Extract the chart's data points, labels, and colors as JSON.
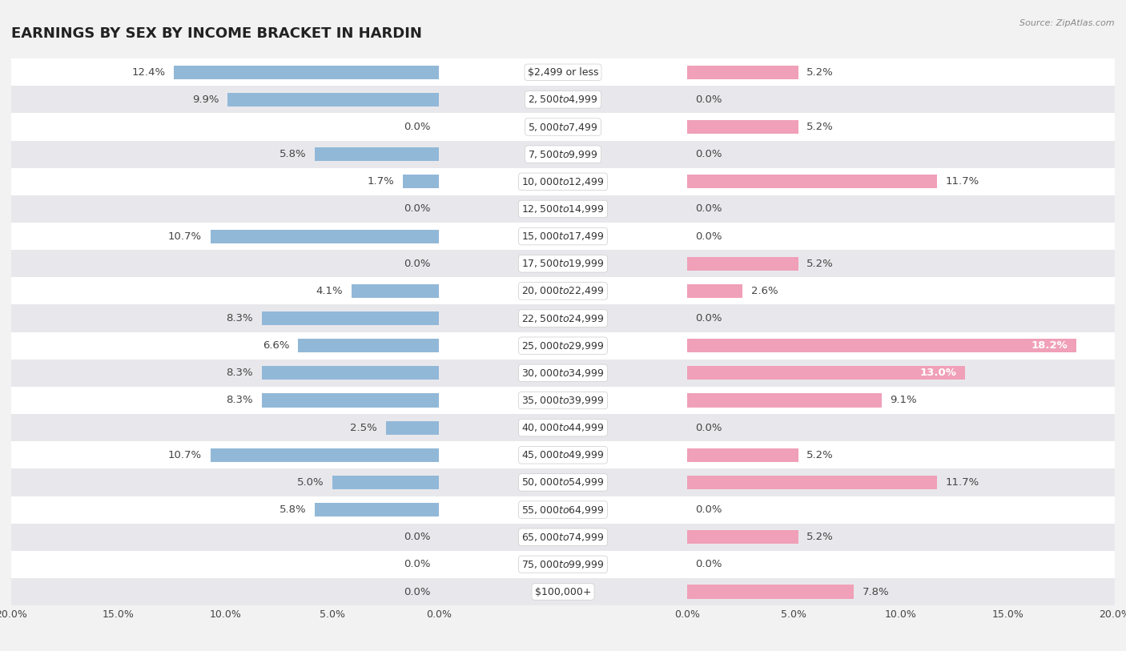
{
  "title": "EARNINGS BY SEX BY INCOME BRACKET IN HARDIN",
  "source": "Source: ZipAtlas.com",
  "categories": [
    "$2,499 or less",
    "$2,500 to $4,999",
    "$5,000 to $7,499",
    "$7,500 to $9,999",
    "$10,000 to $12,499",
    "$12,500 to $14,999",
    "$15,000 to $17,499",
    "$17,500 to $19,999",
    "$20,000 to $22,499",
    "$22,500 to $24,999",
    "$25,000 to $29,999",
    "$30,000 to $34,999",
    "$35,000 to $39,999",
    "$40,000 to $44,999",
    "$45,000 to $49,999",
    "$50,000 to $54,999",
    "$55,000 to $64,999",
    "$65,000 to $74,999",
    "$75,000 to $99,999",
    "$100,000+"
  ],
  "male": [
    12.4,
    9.9,
    0.0,
    5.8,
    1.7,
    0.0,
    10.7,
    0.0,
    4.1,
    8.3,
    6.6,
    8.3,
    8.3,
    2.5,
    10.7,
    5.0,
    5.8,
    0.0,
    0.0,
    0.0
  ],
  "female": [
    5.2,
    0.0,
    5.2,
    0.0,
    11.7,
    0.0,
    0.0,
    5.2,
    2.6,
    0.0,
    18.2,
    13.0,
    9.1,
    0.0,
    5.2,
    11.7,
    0.0,
    5.2,
    0.0,
    7.8
  ],
  "male_color": "#92b8d8",
  "female_color": "#f0a0b8",
  "background_color": "#f2f2f2",
  "row_color_even": "#ffffff",
  "row_color_odd": "#e8e8ec",
  "axis_limit": 20.0,
  "title_fontsize": 13,
  "label_fontsize": 9.5,
  "category_fontsize": 9,
  "tick_fontsize": 9,
  "bar_height": 0.5,
  "female_inside_threshold": 12.0
}
